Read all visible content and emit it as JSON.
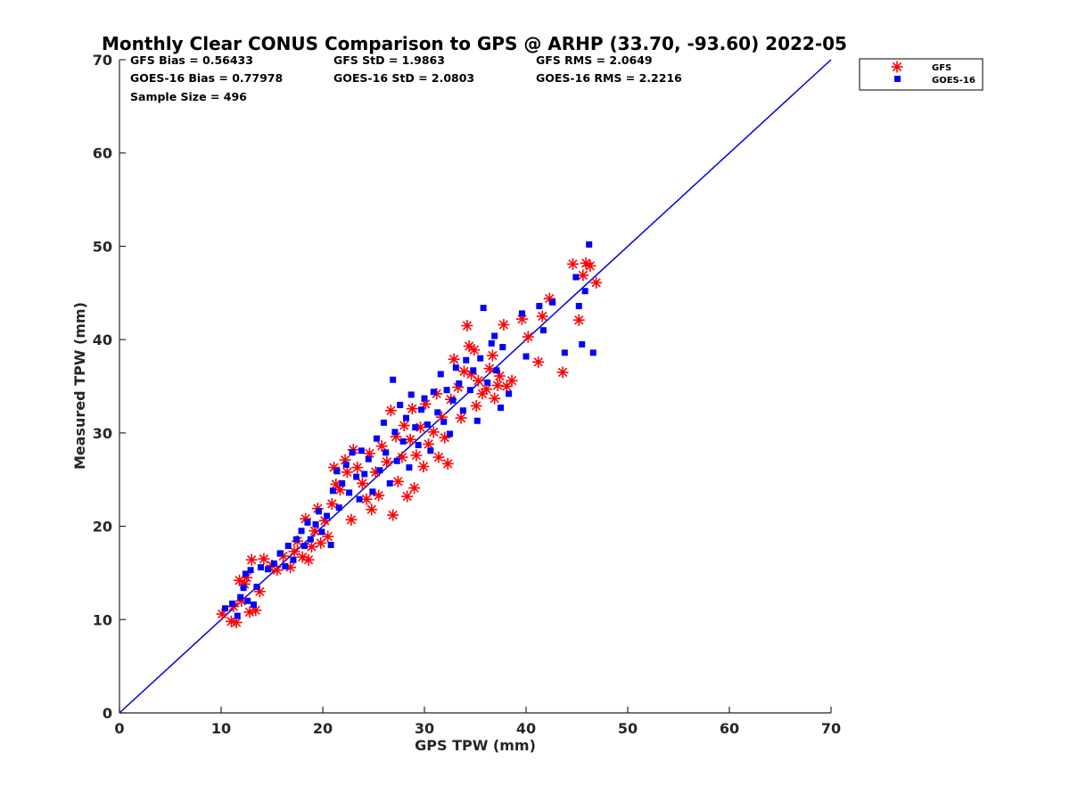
{
  "chart_data": {
    "type": "scatter",
    "title": "Monthly Clear CONUS Comparison to GPS @ ARHP (33.70, -93.60) 2022-05",
    "xlabel": "GPS TPW (mm)",
    "ylabel": "Measured TPW (mm)",
    "xlim": [
      0,
      70
    ],
    "ylim": [
      0,
      70
    ],
    "xticks": [
      "0",
      "10",
      "20",
      "30",
      "40",
      "50",
      "60",
      "70"
    ],
    "yticks": [
      "0",
      "10",
      "20",
      "30",
      "40",
      "50",
      "60",
      "70"
    ],
    "grid": false,
    "legend_position": "outside-top-right",
    "stats": {
      "gfs_bias": "GFS Bias = 0.56433",
      "goes_bias": "GOES-16 Bias = 0.77978",
      "sample_size": "Sample Size = 496",
      "gfs_std": "GFS StD = 1.9863",
      "goes_std": "GOES-16 StD = 2.0803",
      "gfs_rms": "GFS RMS = 2.0649",
      "goes_rms": "GOES-16 RMS = 2.2216"
    },
    "reference_line": {
      "x": [
        0,
        70
      ],
      "y": [
        0,
        70
      ],
      "color": "#0000dd"
    },
    "series": [
      {
        "name": "GFS",
        "marker": "asterisk",
        "color": "#ff0000",
        "points": [
          [
            10.1,
            10.6
          ],
          [
            11.0,
            9.8
          ],
          [
            11.5,
            9.7
          ],
          [
            11.2,
            11.4
          ],
          [
            12.0,
            12.0
          ],
          [
            12.5,
            14.5
          ],
          [
            12.8,
            10.8
          ],
          [
            13.0,
            16.4
          ],
          [
            13.4,
            11.0
          ],
          [
            13.8,
            13.0
          ],
          [
            14.2,
            16.5
          ],
          [
            12.3,
            13.8
          ],
          [
            11.8,
            14.2
          ],
          [
            15.0,
            15.8
          ],
          [
            15.5,
            15.3
          ],
          [
            16.1,
            16.8
          ],
          [
            16.8,
            15.6
          ],
          [
            17.2,
            17.3
          ],
          [
            17.5,
            18.4
          ],
          [
            18.0,
            16.7
          ],
          [
            18.3,
            20.8
          ],
          [
            18.9,
            17.8
          ],
          [
            19.2,
            19.5
          ],
          [
            19.8,
            18.2
          ],
          [
            20.2,
            20.6
          ],
          [
            19.5,
            21.9
          ],
          [
            18.6,
            16.4
          ],
          [
            20.5,
            18.9
          ],
          [
            20.9,
            22.4
          ],
          [
            21.3,
            24.5
          ],
          [
            21.1,
            26.3
          ],
          [
            21.7,
            23.9
          ],
          [
            22.4,
            25.8
          ],
          [
            22.2,
            27.1
          ],
          [
            22.8,
            20.7
          ],
          [
            23.0,
            28.2
          ],
          [
            23.4,
            26.3
          ],
          [
            23.9,
            24.6
          ],
          [
            24.3,
            22.9
          ],
          [
            24.6,
            27.8
          ],
          [
            24.8,
            21.8
          ],
          [
            25.2,
            25.8
          ],
          [
            25.5,
            23.3
          ],
          [
            25.8,
            28.6
          ],
          [
            26.3,
            26.9
          ],
          [
            26.7,
            32.4
          ],
          [
            26.9,
            21.2
          ],
          [
            27.2,
            29.6
          ],
          [
            27.4,
            24.8
          ],
          [
            27.8,
            27.4
          ],
          [
            28.0,
            30.8
          ],
          [
            28.3,
            23.2
          ],
          [
            28.6,
            29.3
          ],
          [
            28.8,
            32.6
          ],
          [
            29.0,
            24.1
          ],
          [
            29.2,
            27.6
          ],
          [
            29.6,
            30.6
          ],
          [
            29.9,
            26.4
          ],
          [
            30.1,
            33.1
          ],
          [
            30.4,
            28.8
          ],
          [
            30.9,
            30.1
          ],
          [
            31.2,
            34.2
          ],
          [
            31.4,
            27.4
          ],
          [
            31.7,
            31.7
          ],
          [
            32.0,
            29.5
          ],
          [
            32.3,
            26.7
          ],
          [
            32.6,
            33.6
          ],
          [
            32.9,
            37.9
          ],
          [
            33.3,
            34.9
          ],
          [
            33.6,
            31.6
          ],
          [
            33.9,
            36.6
          ],
          [
            34.2,
            41.5
          ],
          [
            34.4,
            39.3
          ],
          [
            34.6,
            36.3
          ],
          [
            34.9,
            38.9
          ],
          [
            35.1,
            32.9
          ],
          [
            35.3,
            35.6
          ],
          [
            35.7,
            34.2
          ],
          [
            36.1,
            34.7
          ],
          [
            36.4,
            36.9
          ],
          [
            36.7,
            38.3
          ],
          [
            36.9,
            33.7
          ],
          [
            37.2,
            35.1
          ],
          [
            37.4,
            36.1
          ],
          [
            37.8,
            41.6
          ],
          [
            38.1,
            35.0
          ],
          [
            38.6,
            35.6
          ],
          [
            39.6,
            42.2
          ],
          [
            40.2,
            40.3
          ],
          [
            41.2,
            37.6
          ],
          [
            41.6,
            42.5
          ],
          [
            42.3,
            44.4
          ],
          [
            43.6,
            36.5
          ],
          [
            44.6,
            48.1
          ],
          [
            45.2,
            42.1
          ],
          [
            45.6,
            46.9
          ],
          [
            45.9,
            48.2
          ],
          [
            46.3,
            47.9
          ],
          [
            46.9,
            46.1
          ]
        ]
      },
      {
        "name": "GOES-16",
        "marker": "square",
        "color": "#0000ff",
        "points": [
          [
            10.4,
            11.2
          ],
          [
            11.1,
            11.7
          ],
          [
            11.6,
            10.4
          ],
          [
            11.9,
            12.4
          ],
          [
            12.2,
            13.4
          ],
          [
            12.4,
            14.9
          ],
          [
            12.6,
            12.0
          ],
          [
            12.9,
            15.3
          ],
          [
            13.2,
            11.6
          ],
          [
            13.5,
            13.5
          ],
          [
            13.9,
            15.6
          ],
          [
            14.6,
            15.4
          ],
          [
            15.2,
            16.0
          ],
          [
            15.8,
            17.1
          ],
          [
            16.3,
            15.7
          ],
          [
            16.6,
            17.9
          ],
          [
            17.1,
            16.4
          ],
          [
            17.4,
            18.6
          ],
          [
            17.9,
            19.5
          ],
          [
            18.2,
            17.9
          ],
          [
            18.5,
            20.4
          ],
          [
            18.8,
            18.6
          ],
          [
            19.3,
            20.2
          ],
          [
            19.6,
            21.6
          ],
          [
            19.9,
            19.4
          ],
          [
            20.4,
            21.1
          ],
          [
            20.8,
            18.0
          ],
          [
            21.0,
            23.8
          ],
          [
            21.4,
            25.9
          ],
          [
            21.6,
            22.0
          ],
          [
            21.9,
            24.6
          ],
          [
            22.3,
            26.6
          ],
          [
            22.6,
            23.6
          ],
          [
            22.9,
            27.9
          ],
          [
            23.3,
            25.3
          ],
          [
            23.6,
            22.9
          ],
          [
            23.8,
            28.1
          ],
          [
            24.1,
            25.6
          ],
          [
            24.5,
            27.2
          ],
          [
            24.9,
            23.7
          ],
          [
            25.3,
            29.4
          ],
          [
            25.6,
            26.0
          ],
          [
            26.0,
            31.1
          ],
          [
            26.2,
            27.9
          ],
          [
            26.6,
            24.6
          ],
          [
            26.9,
            35.7
          ],
          [
            27.1,
            30.1
          ],
          [
            27.3,
            27.0
          ],
          [
            27.6,
            33.0
          ],
          [
            27.9,
            29.1
          ],
          [
            28.2,
            31.6
          ],
          [
            28.5,
            26.3
          ],
          [
            28.7,
            34.1
          ],
          [
            29.1,
            30.6
          ],
          [
            29.4,
            28.7
          ],
          [
            29.7,
            32.5
          ],
          [
            30.0,
            33.7
          ],
          [
            30.3,
            30.9
          ],
          [
            30.6,
            28.1
          ],
          [
            30.9,
            34.4
          ],
          [
            31.3,
            32.2
          ],
          [
            31.6,
            36.3
          ],
          [
            31.9,
            31.2
          ],
          [
            32.2,
            34.6
          ],
          [
            32.5,
            29.9
          ],
          [
            32.8,
            33.5
          ],
          [
            33.1,
            37.0
          ],
          [
            33.4,
            35.3
          ],
          [
            33.8,
            32.4
          ],
          [
            34.1,
            37.8
          ],
          [
            34.5,
            34.6
          ],
          [
            34.8,
            36.7
          ],
          [
            35.2,
            31.3
          ],
          [
            35.5,
            38.0
          ],
          [
            35.8,
            43.4
          ],
          [
            36.2,
            35.4
          ],
          [
            36.6,
            39.6
          ],
          [
            36.9,
            40.4
          ],
          [
            37.1,
            36.7
          ],
          [
            37.5,
            32.7
          ],
          [
            37.7,
            39.2
          ],
          [
            38.3,
            34.2
          ],
          [
            39.6,
            42.8
          ],
          [
            40.0,
            38.2
          ],
          [
            41.3,
            43.6
          ],
          [
            41.7,
            41.0
          ],
          [
            42.6,
            44.0
          ],
          [
            43.8,
            38.6
          ],
          [
            44.9,
            46.7
          ],
          [
            45.2,
            43.6
          ],
          [
            45.5,
            39.5
          ],
          [
            45.8,
            45.2
          ],
          [
            46.2,
            50.2
          ],
          [
            46.6,
            38.6
          ]
        ]
      }
    ]
  }
}
